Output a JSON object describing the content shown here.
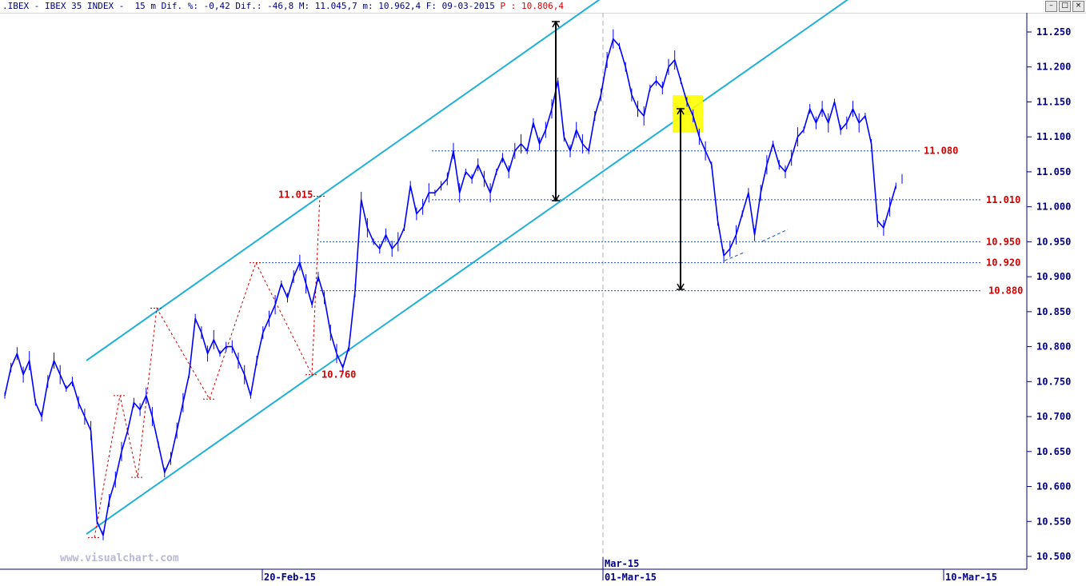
{
  "header": {
    "text": ".IBEX - IBEX 35 INDEX -  15 m Dif. %: -0,42 Dif.: -46,8 M: 11.045,7 m: 10.962,4 F: 09-03-2015 ",
    "price_label": "P : 10.806,4"
  },
  "window_controls": [
    "–",
    "□",
    "×"
  ],
  "watermark": "www.visualchart.com",
  "colors": {
    "price": "#0000ff",
    "channel": "#1fb0d8",
    "levels": "#1f4fbf",
    "annotations": "#d10000",
    "axis": "#000080",
    "highlight": "#ffff00"
  },
  "chart_data": {
    "type": "line",
    "title": "",
    "xlabel": "",
    "ylabel": "",
    "ylim": [
      10.48,
      11.29
    ],
    "yticks": [
      "11.250",
      "11.200",
      "11.150",
      "11.100",
      "11.050",
      "11.000",
      "10.950",
      "10.900",
      "10.850",
      "10.800",
      "10.750",
      "10.700",
      "10.650",
      "10.600",
      "10.550",
      "10.500"
    ],
    "xtick_labels": [
      "20-Feb-15",
      "01-Mar-15",
      "10-Mar-15"
    ],
    "month_label": "Mar-15",
    "series": [
      {
        "values": [
          10.73,
          10.77,
          10.79,
          10.76,
          10.78,
          10.72,
          10.7,
          10.75,
          10.78,
          10.76,
          10.74,
          10.75,
          10.72,
          10.7,
          10.68,
          10.55,
          10.53,
          10.58,
          10.61,
          10.65,
          10.68,
          10.72,
          10.71,
          10.73,
          10.7,
          10.66,
          10.62,
          10.64,
          10.68,
          10.72,
          10.76,
          10.84,
          10.82,
          10.79,
          10.81,
          10.79,
          10.8,
          10.8,
          10.78,
          10.76,
          10.73,
          10.78,
          10.82,
          10.84,
          10.86,
          10.89,
          10.87,
          10.9,
          10.92,
          10.89,
          10.86,
          10.9,
          10.87,
          10.82,
          10.79,
          10.77,
          10.8,
          10.88,
          11.01,
          10.97,
          10.95,
          10.94,
          10.96,
          10.94,
          10.95,
          10.97,
          11.03,
          10.99,
          11.0,
          11.02,
          11.02,
          11.03,
          11.04,
          11.08,
          11.02,
          11.05,
          11.04,
          11.06,
          11.04,
          11.02,
          11.05,
          11.07,
          11.05,
          11.08,
          11.09,
          11.08,
          11.12,
          11.09,
          11.11,
          11.14,
          11.18,
          11.1,
          11.08,
          11.11,
          11.09,
          11.08,
          11.13,
          11.16,
          11.21,
          11.24,
          11.23,
          11.2,
          11.16,
          11.14,
          11.13,
          11.17,
          11.18,
          11.17,
          11.2,
          11.21,
          11.18,
          11.15,
          11.13,
          11.1,
          11.08,
          11.06,
          10.98,
          10.93,
          10.94,
          10.96,
          10.99,
          11.02,
          10.96,
          11.02,
          11.06,
          11.09,
          11.06,
          11.05,
          11.07,
          11.1,
          11.11,
          11.14,
          11.12,
          11.14,
          11.12,
          11.15,
          11.11,
          11.12,
          11.14,
          11.12,
          11.13,
          11.09,
          10.98,
          10.97,
          11.0,
          11.03,
          11.04
        ]
      }
    ],
    "channel": {
      "upper": [
        [
          10.78,
          11.015
        ],
        [
          11.02,
          11.33
        ]
      ],
      "lower": [
        [
          10.532,
          10.76
        ],
        [
          11.01,
          11.33
        ]
      ]
    },
    "levels": [
      "11.080",
      "11.010",
      "10.950",
      "10.920",
      "10.880"
    ],
    "annotations": [
      "11.015",
      "10.760"
    ]
  }
}
